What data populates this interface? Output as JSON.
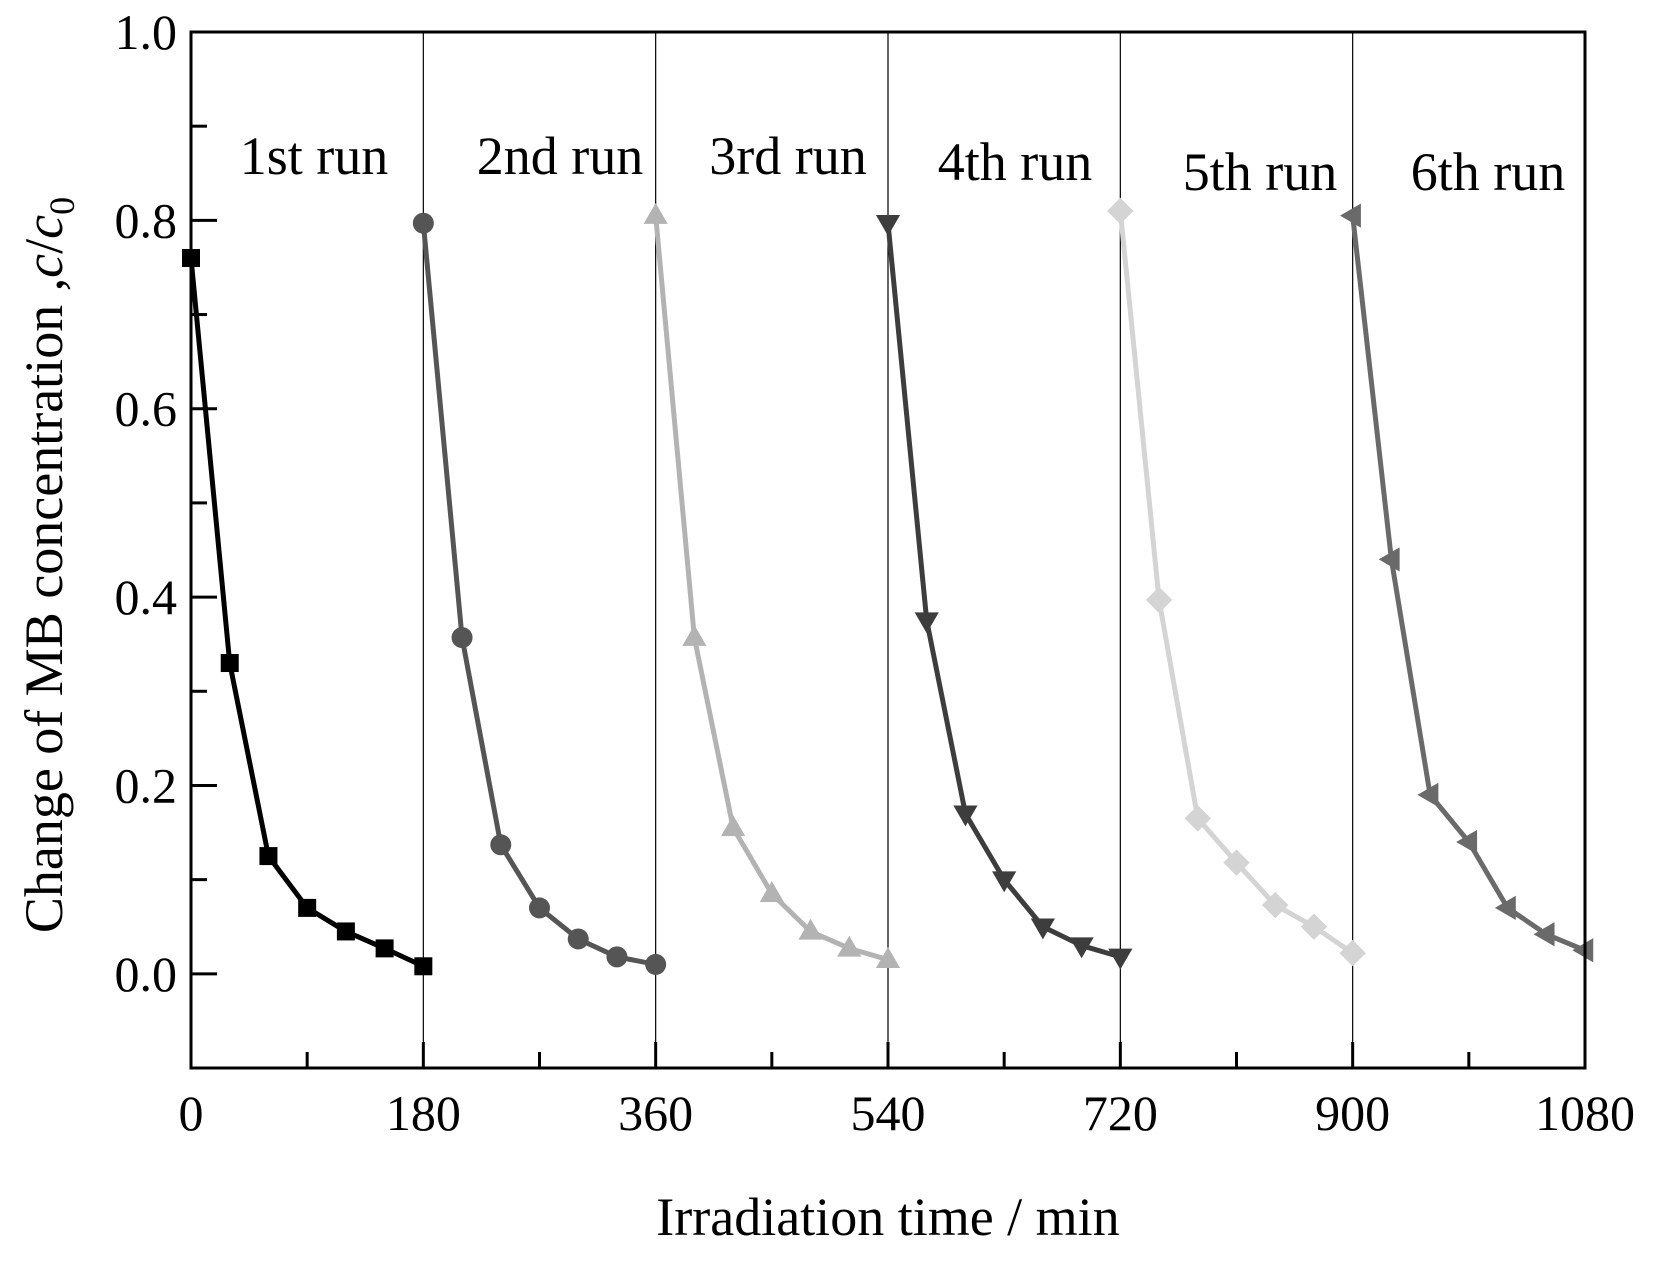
{
  "chart_data": {
    "type": "line",
    "xlabel": "Irradiation time / min",
    "ylabel": {
      "prefix": "Change of MB concentration ,",
      "var_c": "c",
      "slash": "/",
      "var_c0": "c",
      "subscript": "0"
    },
    "xlim": [
      0,
      1080
    ],
    "ylim": [
      -0.1,
      1.0
    ],
    "x_ticks": [
      0,
      180,
      360,
      540,
      720,
      900,
      1080
    ],
    "x_minor_ticks": [
      90,
      270,
      450,
      630,
      810,
      990
    ],
    "y_ticks": [
      0.0,
      0.2,
      0.4,
      0.6,
      0.8,
      1.0
    ],
    "y_tick_labels": [
      "0.0",
      "0.2",
      "0.4",
      "0.6",
      "0.8",
      "1.0"
    ],
    "y_minor_ticks": [
      0.1,
      0.3,
      0.5,
      0.7,
      0.9
    ],
    "run_separators": [
      180,
      360,
      540,
      720,
      900
    ],
    "grid": false,
    "legend": "none",
    "series": [
      {
        "label": "1st run",
        "color": "#000000",
        "marker": "square",
        "x": [
          0,
          30,
          60,
          90,
          120,
          150,
          180
        ],
        "y": [
          0.76,
          0.33,
          0.125,
          0.07,
          0.045,
          0.027,
          0.008
        ]
      },
      {
        "label": "2nd run",
        "color": "#555555",
        "marker": "circle",
        "x": [
          180,
          210,
          240,
          270,
          300,
          330,
          360
        ],
        "y": [
          0.797,
          0.357,
          0.137,
          0.07,
          0.037,
          0.018,
          0.01
        ]
      },
      {
        "label": "3rd run",
        "color": "#b3b3b3",
        "marker": "triangle-up",
        "x": [
          360,
          390,
          420,
          450,
          480,
          510,
          540
        ],
        "y": [
          0.805,
          0.357,
          0.155,
          0.085,
          0.045,
          0.027,
          0.015
        ]
      },
      {
        "label": "4th run",
        "color": "#3d3d3d",
        "marker": "triangle-down",
        "x": [
          540,
          570,
          600,
          630,
          660,
          690,
          720
        ],
        "y": [
          0.797,
          0.375,
          0.17,
          0.1,
          0.05,
          0.03,
          0.018
        ]
      },
      {
        "label": "5th run",
        "color": "#d4d4d4",
        "marker": "diamond",
        "x": [
          720,
          750,
          780,
          810,
          840,
          870,
          900
        ],
        "y": [
          0.81,
          0.397,
          0.165,
          0.118,
          0.073,
          0.05,
          0.022
        ]
      },
      {
        "label": "6th run",
        "color": "#6a6a6a",
        "marker": "triangle-left",
        "x": [
          900,
          930,
          960,
          990,
          1020,
          1050,
          1080
        ],
        "y": [
          0.805,
          0.44,
          0.19,
          0.14,
          0.07,
          0.042,
          0.025
        ]
      }
    ]
  }
}
